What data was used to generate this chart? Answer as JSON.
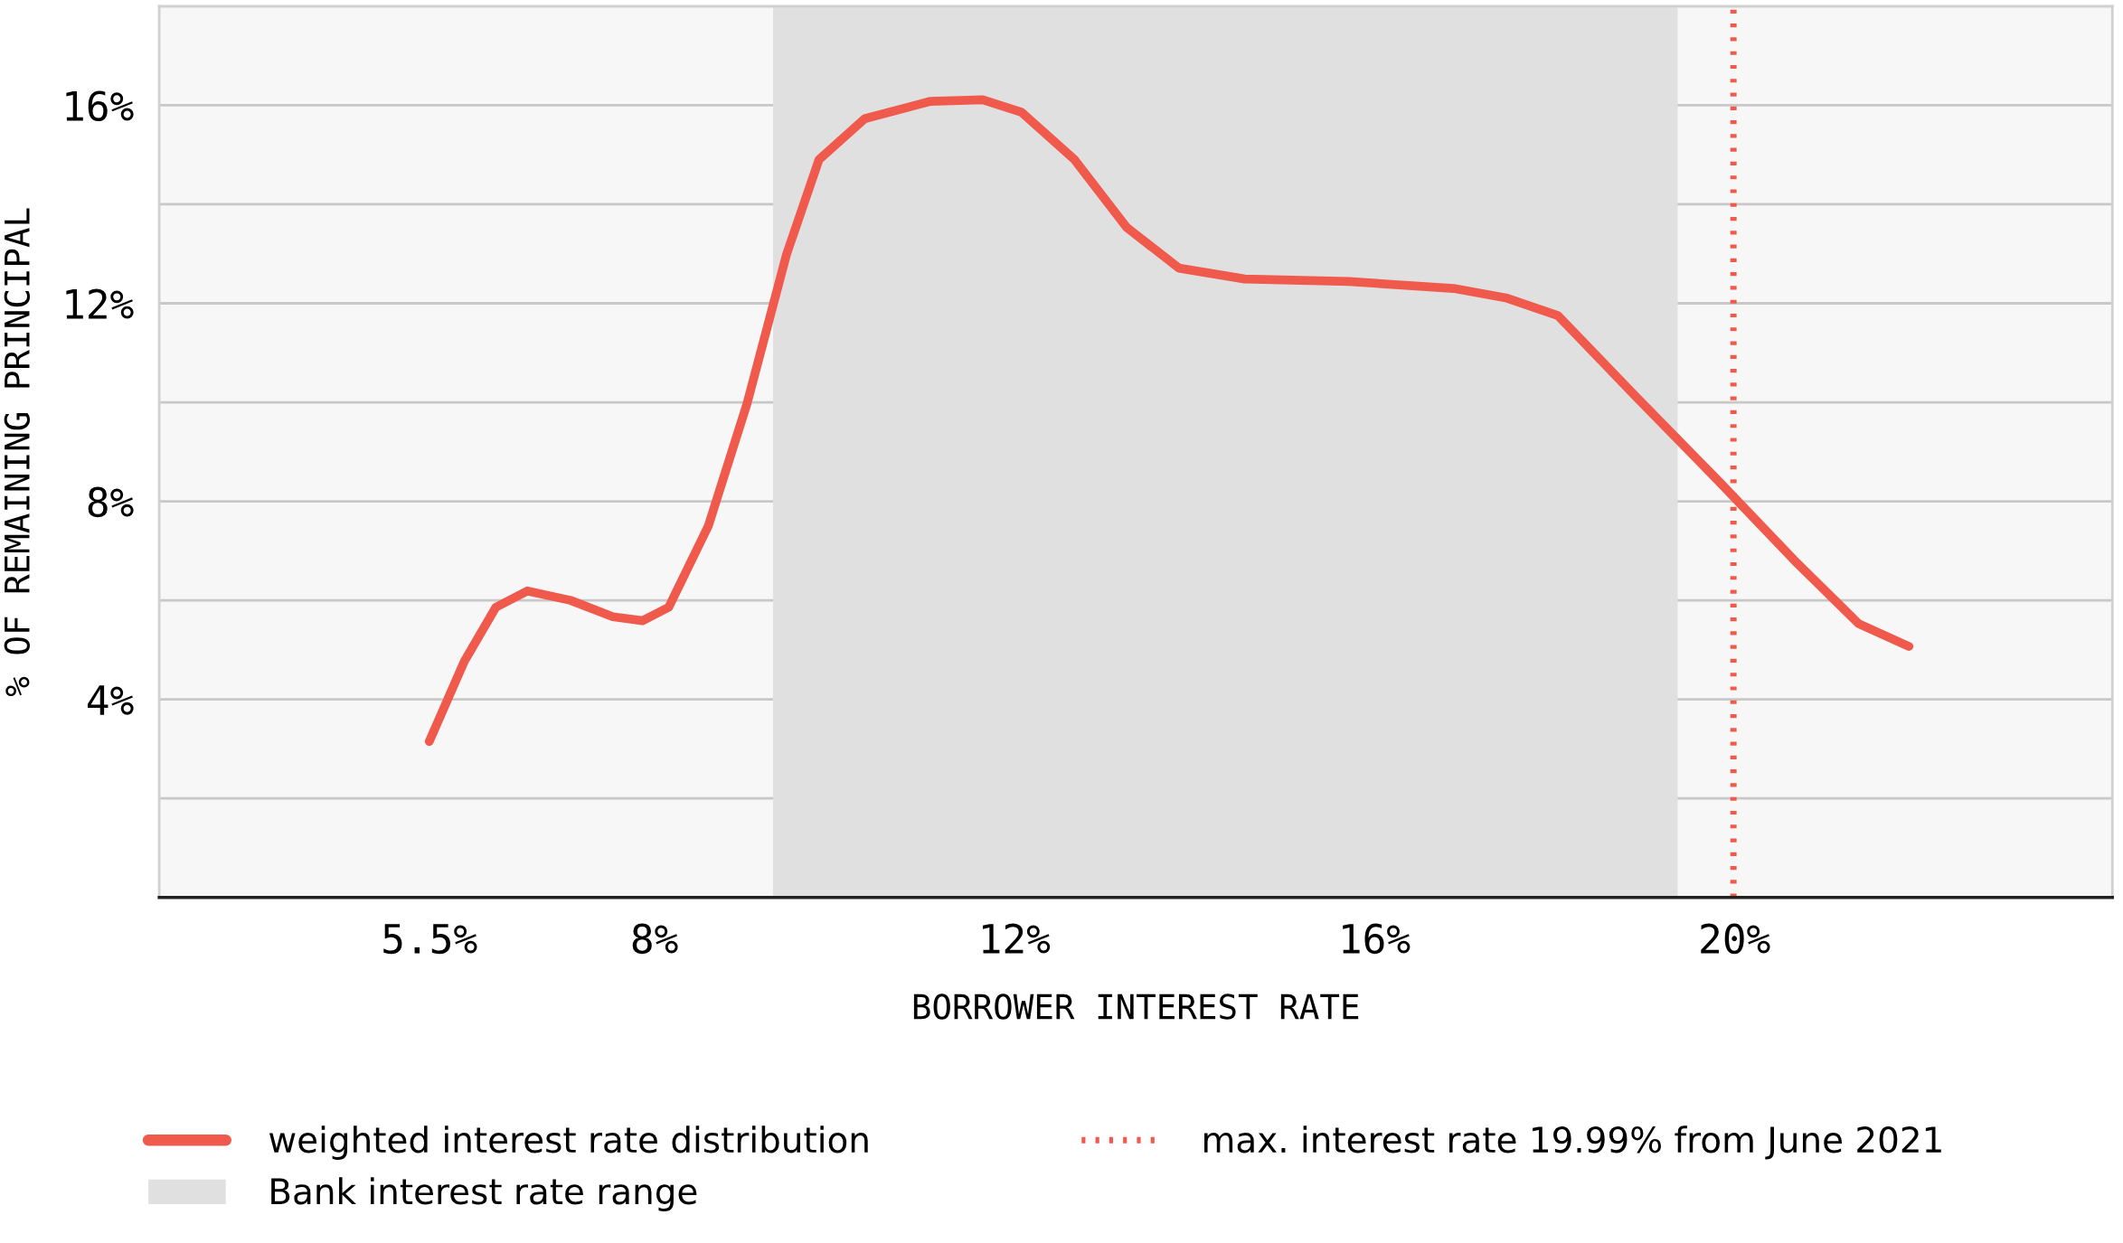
{
  "chart_data": {
    "type": "line",
    "xlabel": "BORROWER INTEREST RATE",
    "ylabel": "% OF REMAINING PRINCIPAL",
    "series": [
      {
        "name": "weighted interest rate distribution",
        "color": "#ef5a4c",
        "x": [
          5.5,
          5.89,
          6.24,
          6.59,
          7.07,
          7.54,
          7.87,
          8.16,
          8.6,
          9.03,
          9.47,
          9.83,
          10.34,
          11.07,
          11.65,
          12.08,
          12.67,
          13.25,
          13.83,
          14.56,
          15.72,
          16.88,
          17.46,
          18.04,
          18.91,
          19.84,
          20.66,
          21.38,
          21.94
        ],
        "values": [
          3.15,
          4.77,
          5.86,
          6.19,
          6.0,
          5.67,
          5.59,
          5.86,
          7.5,
          9.97,
          12.99,
          14.9,
          15.73,
          16.08,
          16.11,
          15.86,
          14.9,
          13.53,
          12.71,
          12.49,
          12.44,
          12.3,
          12.11,
          11.75,
          10.11,
          8.38,
          6.82,
          5.53,
          5.07
        ]
      }
    ],
    "ref_lines": [
      {
        "axis": "x",
        "value": 19.99,
        "label": "max. interest rate 19.99% from June 2021",
        "color": "#ef5a4c",
        "line_style": "dotted"
      }
    ],
    "bands": [
      {
        "axis": "x",
        "from": 9.32,
        "to": 19.37,
        "label": "Bank interest rate range",
        "color": "#e0e0e0"
      }
    ],
    "xlim": [
      2.5,
      24.2
    ],
    "xticks": [
      {
        "value": 5.5,
        "label": "5.5%"
      },
      {
        "value": 8,
        "label": "8%"
      },
      {
        "value": 12,
        "label": "12%"
      },
      {
        "value": 16,
        "label": "16%"
      },
      {
        "value": 20,
        "label": "20%"
      }
    ],
    "ylim": [
      0,
      18
    ],
    "yticks": [
      {
        "value": 2,
        "label": null
      },
      {
        "value": 4,
        "label": "4%"
      },
      {
        "value": 6,
        "label": null
      },
      {
        "value": 8,
        "label": "8%"
      },
      {
        "value": 10,
        "label": null
      },
      {
        "value": 12,
        "label": "12%"
      },
      {
        "value": 14,
        "label": null
      },
      {
        "value": 16,
        "label": "16%"
      },
      {
        "value": 18,
        "label": null
      }
    ],
    "grid": "y",
    "legend": "bottom",
    "line_style": "solid",
    "marker": "none"
  }
}
